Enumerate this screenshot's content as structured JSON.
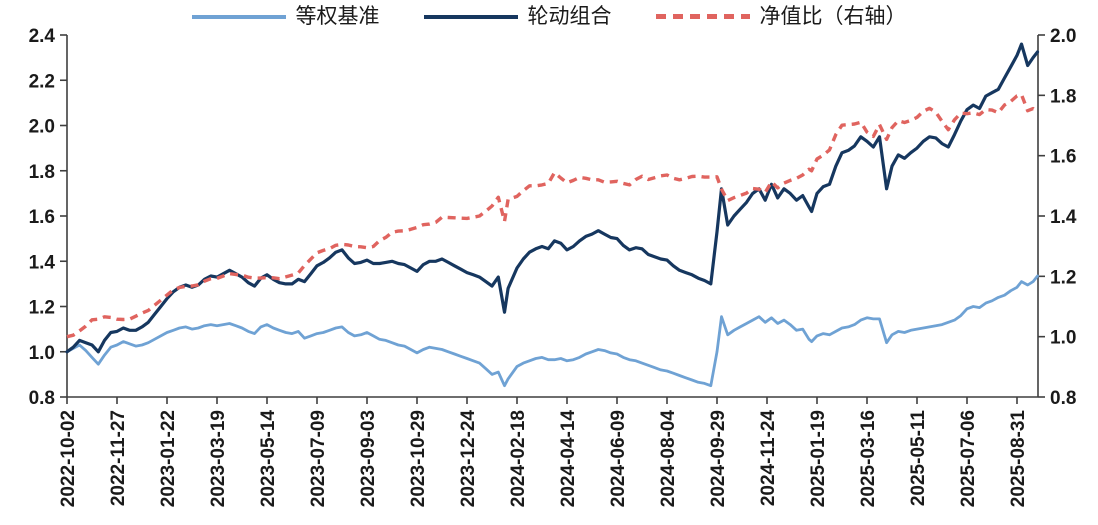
{
  "chart_data": {
    "type": "line",
    "title": "",
    "grid": false,
    "legend_position": "top",
    "background": "#ffffff",
    "axis_color": "#3f3f3f",
    "tick_label_color": "#1a1a1a",
    "legend": [
      {
        "label": "等权基准",
        "color": "#6FA2D4",
        "style": "solid",
        "axis": "left"
      },
      {
        "label": "轮动组合",
        "color": "#16375F",
        "style": "solid",
        "axis": "left"
      },
      {
        "label": "净值比（右轴）",
        "color": "#E0645F",
        "style": "dashed",
        "axis": "right"
      }
    ],
    "left_axis": {
      "min": 0.8,
      "max": 2.4,
      "step": 0.2,
      "ticks": [
        0.8,
        1.0,
        1.2,
        1.4,
        1.6,
        1.8,
        2.0,
        2.2,
        2.4
      ]
    },
    "right_axis": {
      "min": 0.8,
      "max": 2.0,
      "step": 0.2,
      "ticks": [
        0.8,
        1.0,
        1.2,
        1.4,
        1.6,
        1.8,
        2.0
      ]
    },
    "x_axis": {
      "start": "2022-10-02",
      "tick_interval_days": 56,
      "tick_labels": [
        "2022-10-02",
        "2022-11-27",
        "2023-01-22",
        "2023-03-19",
        "2023-05-14",
        "2023-07-09",
        "2023-09-03",
        "2023-10-29",
        "2023-12-24",
        "2024-02-18",
        "2024-04-14",
        "2024-06-09",
        "2024-08-04",
        "2024-09-29",
        "2024-11-24",
        "2025-01-19",
        "2025-03-16",
        "2025-05-11",
        "2025-07-06",
        "2025-08-31"
      ],
      "data_end": "2025-09-23"
    },
    "columns": [
      "date",
      "等权基准",
      "轮动组合",
      "净值比"
    ],
    "points": [
      [
        "2022-10-02",
        1.0,
        1.0,
        1.0
      ],
      [
        "2022-10-09",
        1.015,
        1.02,
        1.005
      ],
      [
        "2022-10-16",
        1.03,
        1.05,
        1.019
      ],
      [
        "2022-10-23",
        1.005,
        1.04,
        1.035
      ],
      [
        "2022-10-30",
        0.975,
        1.03,
        1.056
      ],
      [
        "2022-11-06",
        0.945,
        1.0,
        1.058
      ],
      [
        "2022-11-13",
        0.985,
        1.05,
        1.066
      ],
      [
        "2022-11-20",
        1.02,
        1.085,
        1.064
      ],
      [
        "2022-11-27",
        1.03,
        1.09,
        1.058
      ],
      [
        "2022-12-04",
        1.045,
        1.105,
        1.057
      ],
      [
        "2022-12-11",
        1.035,
        1.095,
        1.058
      ],
      [
        "2022-12-18",
        1.025,
        1.095,
        1.068
      ],
      [
        "2022-12-25",
        1.03,
        1.11,
        1.078
      ],
      [
        "2023-01-01",
        1.04,
        1.13,
        1.087
      ],
      [
        "2023-01-08",
        1.055,
        1.165,
        1.104
      ],
      [
        "2023-01-15",
        1.07,
        1.2,
        1.121
      ],
      [
        "2023-01-22",
        1.085,
        1.235,
        1.138
      ],
      [
        "2023-01-29",
        1.095,
        1.265,
        1.155
      ],
      [
        "2023-02-05",
        1.105,
        1.285,
        1.163
      ],
      [
        "2023-02-12",
        1.11,
        1.295,
        1.167
      ],
      [
        "2023-02-19",
        1.1,
        1.285,
        1.168
      ],
      [
        "2023-02-26",
        1.105,
        1.295,
        1.172
      ],
      [
        "2023-03-05",
        1.115,
        1.32,
        1.184
      ],
      [
        "2023-03-12",
        1.12,
        1.335,
        1.192
      ],
      [
        "2023-03-19",
        1.115,
        1.33,
        1.193
      ],
      [
        "2023-03-26",
        1.12,
        1.345,
        1.201
      ],
      [
        "2023-04-02",
        1.125,
        1.36,
        1.209
      ],
      [
        "2023-04-09",
        1.115,
        1.345,
        1.206
      ],
      [
        "2023-04-16",
        1.105,
        1.33,
        1.204
      ],
      [
        "2023-04-23",
        1.09,
        1.305,
        1.197
      ],
      [
        "2023-04-30",
        1.08,
        1.29,
        1.194
      ],
      [
        "2023-05-07",
        1.11,
        1.325,
        1.194
      ],
      [
        "2023-05-14",
        1.12,
        1.34,
        1.196
      ],
      [
        "2023-05-21",
        1.105,
        1.32,
        1.195
      ],
      [
        "2023-05-28",
        1.095,
        1.305,
        1.192
      ],
      [
        "2023-06-04",
        1.085,
        1.3,
        1.198
      ],
      [
        "2023-06-11",
        1.08,
        1.3,
        1.204
      ],
      [
        "2023-06-18",
        1.09,
        1.32,
        1.211
      ],
      [
        "2023-06-25",
        1.06,
        1.31,
        1.236
      ],
      [
        "2023-07-02",
        1.07,
        1.345,
        1.257
      ],
      [
        "2023-07-09",
        1.08,
        1.38,
        1.278
      ],
      [
        "2023-07-16",
        1.085,
        1.395,
        1.286
      ],
      [
        "2023-07-23",
        1.095,
        1.415,
        1.292
      ],
      [
        "2023-07-30",
        1.105,
        1.44,
        1.303
      ],
      [
        "2023-08-06",
        1.11,
        1.45,
        1.306
      ],
      [
        "2023-08-13",
        1.085,
        1.415,
        1.304
      ],
      [
        "2023-08-20",
        1.07,
        1.39,
        1.299
      ],
      [
        "2023-08-27",
        1.075,
        1.395,
        1.298
      ],
      [
        "2023-09-03",
        1.085,
        1.405,
        1.295
      ],
      [
        "2023-09-10",
        1.07,
        1.39,
        1.299
      ],
      [
        "2023-09-17",
        1.055,
        1.39,
        1.318
      ],
      [
        "2023-09-24",
        1.05,
        1.395,
        1.329
      ],
      [
        "2023-10-01",
        1.04,
        1.4,
        1.346
      ],
      [
        "2023-10-08",
        1.03,
        1.39,
        1.35
      ],
      [
        "2023-10-15",
        1.025,
        1.385,
        1.351
      ],
      [
        "2023-10-22",
        1.01,
        1.37,
        1.356
      ],
      [
        "2023-10-29",
        0.995,
        1.355,
        1.362
      ],
      [
        "2023-11-05",
        1.01,
        1.385,
        1.371
      ],
      [
        "2023-11-12",
        1.02,
        1.4,
        1.373
      ],
      [
        "2023-11-19",
        1.015,
        1.4,
        1.379
      ],
      [
        "2023-11-26",
        1.01,
        1.41,
        1.396
      ],
      [
        "2023-12-03",
        1.0,
        1.395,
        1.395
      ],
      [
        "2023-12-10",
        0.99,
        1.38,
        1.394
      ],
      [
        "2023-12-17",
        0.98,
        1.365,
        1.393
      ],
      [
        "2023-12-24",
        0.97,
        1.35,
        1.392
      ],
      [
        "2023-12-31",
        0.96,
        1.34,
        1.396
      ],
      [
        "2024-01-07",
        0.95,
        1.33,
        1.4
      ],
      [
        "2024-01-14",
        0.925,
        1.31,
        1.416
      ],
      [
        "2024-01-21",
        0.9,
        1.29,
        1.433
      ],
      [
        "2024-01-28",
        0.91,
        1.33,
        1.462
      ],
      [
        "2024-02-04",
        0.85,
        1.175,
        1.382
      ],
      [
        "2024-02-08",
        0.88,
        1.28,
        1.455
      ],
      [
        "2024-02-18",
        0.935,
        1.37,
        1.465
      ],
      [
        "2024-02-25",
        0.95,
        1.41,
        1.484
      ],
      [
        "2024-03-03",
        0.96,
        1.44,
        1.5
      ],
      [
        "2024-03-10",
        0.97,
        1.455,
        1.5
      ],
      [
        "2024-03-17",
        0.975,
        1.465,
        1.503
      ],
      [
        "2024-03-24",
        0.965,
        1.455,
        1.508
      ],
      [
        "2024-03-31",
        0.965,
        1.49,
        1.544
      ],
      [
        "2024-04-07",
        0.97,
        1.48,
        1.526
      ],
      [
        "2024-04-14",
        0.96,
        1.45,
        1.51
      ],
      [
        "2024-04-21",
        0.965,
        1.465,
        1.518
      ],
      [
        "2024-04-28",
        0.975,
        1.49,
        1.528
      ],
      [
        "2024-05-05",
        0.99,
        1.51,
        1.525
      ],
      [
        "2024-05-12",
        1.0,
        1.52,
        1.52
      ],
      [
        "2024-05-19",
        1.01,
        1.535,
        1.52
      ],
      [
        "2024-05-26",
        1.005,
        1.52,
        1.512
      ],
      [
        "2024-06-02",
        0.995,
        1.505,
        1.513
      ],
      [
        "2024-06-09",
        0.99,
        1.5,
        1.515
      ],
      [
        "2024-06-16",
        0.975,
        1.47,
        1.508
      ],
      [
        "2024-06-23",
        0.965,
        1.45,
        1.503
      ],
      [
        "2024-06-30",
        0.96,
        1.46,
        1.521
      ],
      [
        "2024-07-07",
        0.95,
        1.455,
        1.532
      ],
      [
        "2024-07-14",
        0.94,
        1.43,
        1.521
      ],
      [
        "2024-07-21",
        0.93,
        1.42,
        1.527
      ],
      [
        "2024-07-28",
        0.92,
        1.41,
        1.533
      ],
      [
        "2024-08-04",
        0.915,
        1.405,
        1.536
      ],
      [
        "2024-08-11",
        0.905,
        1.38,
        1.525
      ],
      [
        "2024-08-18",
        0.895,
        1.36,
        1.52
      ],
      [
        "2024-08-25",
        0.885,
        1.35,
        1.525
      ],
      [
        "2024-09-01",
        0.875,
        1.34,
        1.531
      ],
      [
        "2024-09-08",
        0.865,
        1.325,
        1.532
      ],
      [
        "2024-09-15",
        0.86,
        1.315,
        1.529
      ],
      [
        "2024-09-22",
        0.85,
        1.3,
        1.529
      ],
      [
        "2024-09-29",
        1.0,
        1.53,
        1.53
      ],
      [
        "2024-10-04",
        1.155,
        1.72,
        1.489
      ],
      [
        "2024-10-11",
        1.075,
        1.56,
        1.451
      ],
      [
        "2024-10-18",
        1.095,
        1.6,
        1.461
      ],
      [
        "2024-10-25",
        1.11,
        1.63,
        1.468
      ],
      [
        "2024-11-01",
        1.125,
        1.66,
        1.476
      ],
      [
        "2024-11-08",
        1.14,
        1.7,
        1.491
      ],
      [
        "2024-11-15",
        1.155,
        1.72,
        1.489
      ],
      [
        "2024-11-22",
        1.13,
        1.67,
        1.478
      ],
      [
        "2024-11-29",
        1.15,
        1.74,
        1.513
      ],
      [
        "2024-12-06",
        1.125,
        1.68,
        1.493
      ],
      [
        "2024-12-13",
        1.14,
        1.72,
        1.509
      ],
      [
        "2024-12-20",
        1.12,
        1.7,
        1.518
      ],
      [
        "2024-12-27",
        1.095,
        1.67,
        1.525
      ],
      [
        "2025-01-03",
        1.1,
        1.69,
        1.536
      ],
      [
        "2025-01-10",
        1.055,
        1.64,
        1.555
      ],
      [
        "2025-01-13",
        1.045,
        1.62,
        1.55
      ],
      [
        "2025-01-19",
        1.07,
        1.7,
        1.589
      ],
      [
        "2025-01-26",
        1.08,
        1.73,
        1.602
      ],
      [
        "2025-02-02",
        1.075,
        1.74,
        1.619
      ],
      [
        "2025-02-09",
        1.09,
        1.82,
        1.67
      ],
      [
        "2025-02-16",
        1.105,
        1.88,
        1.701
      ],
      [
        "2025-02-23",
        1.11,
        1.89,
        1.703
      ],
      [
        "2025-03-02",
        1.12,
        1.91,
        1.705
      ],
      [
        "2025-03-09",
        1.14,
        1.95,
        1.711
      ],
      [
        "2025-03-16",
        1.15,
        1.93,
        1.678
      ],
      [
        "2025-03-23",
        1.145,
        1.905,
        1.664
      ],
      [
        "2025-03-30",
        1.145,
        1.95,
        1.703
      ],
      [
        "2025-04-07",
        1.04,
        1.72,
        1.654
      ],
      [
        "2025-04-13",
        1.075,
        1.82,
        1.693
      ],
      [
        "2025-04-20",
        1.09,
        1.87,
        1.716
      ],
      [
        "2025-04-27",
        1.085,
        1.855,
        1.71
      ],
      [
        "2025-05-04",
        1.095,
        1.88,
        1.717
      ],
      [
        "2025-05-11",
        1.1,
        1.9,
        1.727
      ],
      [
        "2025-05-18",
        1.105,
        1.93,
        1.747
      ],
      [
        "2025-05-25",
        1.11,
        1.95,
        1.757
      ],
      [
        "2025-06-01",
        1.115,
        1.945,
        1.744
      ],
      [
        "2025-06-08",
        1.12,
        1.92,
        1.714
      ],
      [
        "2025-06-15",
        1.13,
        1.905,
        1.686
      ],
      [
        "2025-06-22",
        1.14,
        1.96,
        1.719
      ],
      [
        "2025-06-29",
        1.16,
        2.02,
        1.741
      ],
      [
        "2025-07-06",
        1.19,
        2.07,
        1.739
      ],
      [
        "2025-07-13",
        1.2,
        2.09,
        1.742
      ],
      [
        "2025-07-20",
        1.195,
        2.075,
        1.736
      ],
      [
        "2025-07-27",
        1.215,
        2.13,
        1.753
      ],
      [
        "2025-08-03",
        1.225,
        2.145,
        1.751
      ],
      [
        "2025-08-10",
        1.24,
        2.16,
        1.742
      ],
      [
        "2025-08-17",
        1.25,
        2.21,
        1.768
      ],
      [
        "2025-08-24",
        1.27,
        2.26,
        1.78
      ],
      [
        "2025-08-31",
        1.285,
        2.31,
        1.798
      ],
      [
        "2025-09-05",
        1.31,
        2.36,
        1.802
      ],
      [
        "2025-09-12",
        1.295,
        2.265,
        1.749
      ],
      [
        "2025-09-18",
        1.31,
        2.3,
        1.756
      ],
      [
        "2025-09-23",
        1.335,
        2.325,
        1.742
      ]
    ]
  }
}
